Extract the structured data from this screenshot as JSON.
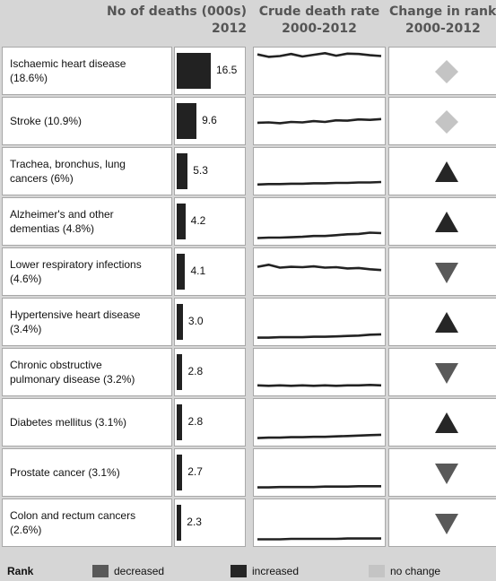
{
  "headers": {
    "deaths_line1": "No of deaths (000s)",
    "deaths_line2": "2012",
    "rate_line1": "Crude death rate",
    "rate_line2": "2000-2012",
    "rank_line1": "Change in rank",
    "rank_line2": "2000-2012"
  },
  "legend": {
    "title": "Rank",
    "decreased": "decreased",
    "increased": "increased",
    "no_change": "no change"
  },
  "colors": {
    "decreased": "#595959",
    "increased": "#262626",
    "no_change": "#c4c4c4",
    "bar": "#222222"
  },
  "chart_data": {
    "type": "table",
    "bar_max": 16.5,
    "rows": [
      {
        "label_lines": [
          "Ischaemic heart disease",
          "(18.6%)"
        ],
        "value": 16.5,
        "value_label": "16.5",
        "rank_change": "no_change",
        "trend": [
          0.92,
          0.86,
          0.88,
          0.93,
          0.87,
          0.91,
          0.95,
          0.89,
          0.94,
          0.93,
          0.9,
          0.88
        ]
      },
      {
        "label_lines": [
          "Stroke (10.9%)"
        ],
        "value": 9.6,
        "value_label": "9.6",
        "rank_change": "no_change",
        "trend": [
          0.48,
          0.49,
          0.47,
          0.5,
          0.49,
          0.52,
          0.5,
          0.54,
          0.53,
          0.56,
          0.55,
          0.57
        ]
      },
      {
        "label_lines": [
          "Trachea, bronchus, lung",
          "cancers (6%)"
        ],
        "value": 5.3,
        "value_label": "5.3",
        "rank_change": "increased",
        "trend": [
          0.2,
          0.21,
          0.21,
          0.22,
          0.22,
          0.23,
          0.23,
          0.24,
          0.24,
          0.25,
          0.25,
          0.26
        ]
      },
      {
        "label_lines": [
          "Alzheimer's and other",
          "dementias (4.8%)"
        ],
        "value": 4.2,
        "value_label": "4.2",
        "rank_change": "increased",
        "trend": [
          0.12,
          0.13,
          0.13,
          0.14,
          0.15,
          0.17,
          0.17,
          0.19,
          0.21,
          0.22,
          0.25,
          0.24
        ]
      },
      {
        "label_lines": [
          "Lower respiratory infections",
          "(4.6%)"
        ],
        "value": 4.1,
        "value_label": "4.1",
        "rank_change": "decreased",
        "trend": [
          0.64,
          0.69,
          0.62,
          0.64,
          0.63,
          0.65,
          0.62,
          0.63,
          0.6,
          0.61,
          0.58,
          0.56
        ]
      },
      {
        "label_lines": [
          "Hypertensive heart disease",
          "(3.4%)"
        ],
        "value": 3.0,
        "value_label": "3.0",
        "rank_change": "increased",
        "trend": [
          0.14,
          0.14,
          0.15,
          0.15,
          0.15,
          0.16,
          0.16,
          0.17,
          0.18,
          0.19,
          0.21,
          0.22
        ]
      },
      {
        "label_lines": [
          "Chronic obstructive",
          "pulmonary disease (3.2%)"
        ],
        "value": 2.8,
        "value_label": "2.8",
        "rank_change": "decreased",
        "trend": [
          0.2,
          0.19,
          0.2,
          0.19,
          0.2,
          0.19,
          0.2,
          0.19,
          0.2,
          0.2,
          0.21,
          0.2
        ]
      },
      {
        "label_lines": [
          "Diabetes mellitus (3.1%)"
        ],
        "value": 2.8,
        "value_label": "2.8",
        "rank_change": "increased",
        "trend": [
          0.14,
          0.15,
          0.15,
          0.16,
          0.16,
          0.17,
          0.17,
          0.18,
          0.19,
          0.2,
          0.21,
          0.22
        ]
      },
      {
        "label_lines": [
          "Prostate cancer (3.1%)"
        ],
        "value": 2.7,
        "value_label": "2.7",
        "rank_change": "decreased",
        "trend": [
          0.16,
          0.16,
          0.17,
          0.17,
          0.17,
          0.17,
          0.18,
          0.18,
          0.18,
          0.19,
          0.19,
          0.19
        ]
      },
      {
        "label_lines": [
          "Colon and rectum cancers",
          "(2.6%)"
        ],
        "value": 2.3,
        "value_label": "2.3",
        "rank_change": "decreased",
        "trend": [
          0.12,
          0.12,
          0.12,
          0.13,
          0.13,
          0.13,
          0.13,
          0.13,
          0.14,
          0.14,
          0.14,
          0.14
        ]
      }
    ]
  }
}
